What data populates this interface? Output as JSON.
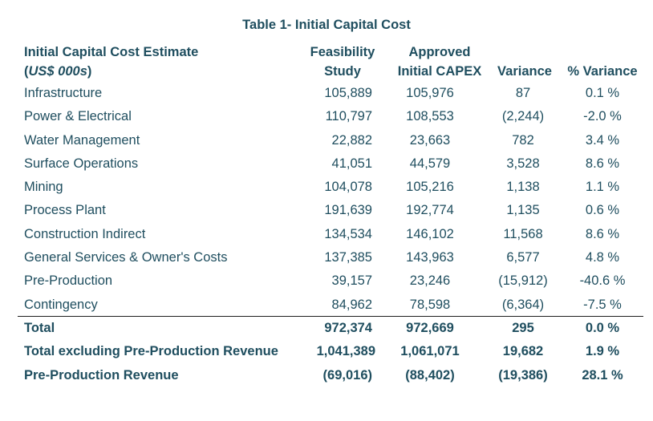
{
  "title": "Table 1- Initial Capital Cost",
  "header": {
    "label_line1": "Initial Capital Cost Estimate",
    "label_line2": "(US$ 000s)",
    "col1_line1": "Feasibility",
    "col1_line2": "Study",
    "col2_line1": "Approved",
    "col2_line2": "Initial CAPEX",
    "col3": "Variance",
    "col4": "% Variance"
  },
  "rows": [
    {
      "label": "Infrastructure",
      "fs": "105,889",
      "capex": "105,976",
      "var": "87",
      "pct": "0.1 %"
    },
    {
      "label": "Power & Electrical",
      "fs": "110,797",
      "capex": "108,553",
      "var": "(2,244)",
      "pct": "-2.0 %"
    },
    {
      "label": "Water Management",
      "fs": "22,882",
      "capex": "23,663",
      "var": "782",
      "pct": "3.4 %"
    },
    {
      "label": "Surface Operations",
      "fs": "41,051",
      "capex": "44,579",
      "var": "3,528",
      "pct": "8.6 %"
    },
    {
      "label": "Mining",
      "fs": "104,078",
      "capex": "105,216",
      "var": "1,138",
      "pct": "1.1 %"
    },
    {
      "label": "Process Plant",
      "fs": "191,639",
      "capex": "192,774",
      "var": "1,135",
      "pct": "0.6 %"
    },
    {
      "label": "Construction Indirect",
      "fs": "134,534",
      "capex": "146,102",
      "var": "11,568",
      "pct": "8.6 %"
    },
    {
      "label": "General Services & Owner's Costs",
      "fs": "137,385",
      "capex": "143,963",
      "var": "6,577",
      "pct": "4.8 %"
    },
    {
      "label": "Pre-Production",
      "fs": "39,157",
      "capex": "23,246",
      "var": "(15,912)",
      "pct": "-40.6 %"
    },
    {
      "label": "Contingency",
      "fs": "84,962",
      "capex": "78,598",
      "var": "(6,364)",
      "pct": "-7.5 %"
    }
  ],
  "totals": [
    {
      "label": "Total",
      "fs": "972,374",
      "capex": "972,669",
      "var": "295",
      "pct": "0.0 %"
    },
    {
      "label": "Total excluding Pre-Production Revenue",
      "fs": "1,041,389",
      "capex": "1,061,071",
      "var": "19,682",
      "pct": "1.9 %"
    },
    {
      "label": "Pre-Production Revenue",
      "fs": "(69,016)",
      "capex": "(88,402)",
      "var": "(19,386)",
      "pct": "28.1 %"
    }
  ],
  "colors": {
    "text": "#1f4e5f",
    "rule": "#1f1f1f"
  }
}
